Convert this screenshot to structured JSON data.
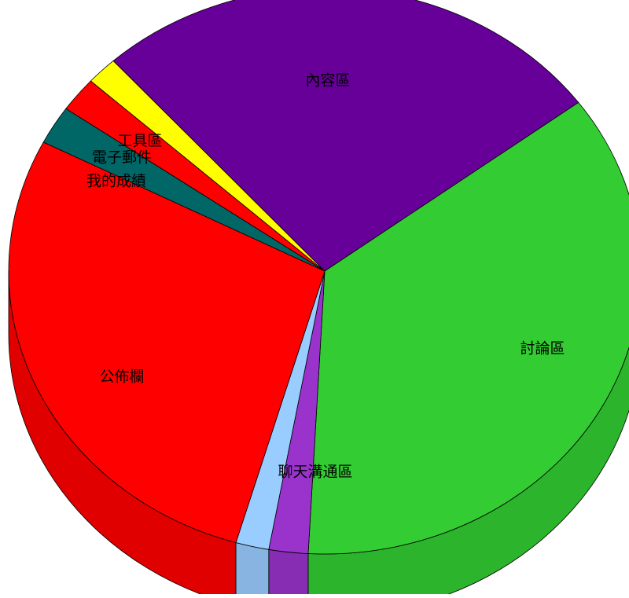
{
  "chart_data": {
    "type": "pie",
    "title": "",
    "style": "3d",
    "slices": [
      {
        "label": "內容區",
        "value": 26.5,
        "color": "#660099"
      },
      {
        "label": "討論區",
        "value": 36.0,
        "color": "#33CC33"
      },
      {
        "label": "",
        "value": 2.0,
        "color": "#9933CC"
      },
      {
        "label": "",
        "value": 1.7,
        "color": "#99CCFF"
      },
      {
        "label": "公佈欄",
        "value": 28.0,
        "color": "#FF0000"
      },
      {
        "label": "我的成績",
        "value": 2.2,
        "color": "#006666"
      },
      {
        "label": "電子郵件",
        "value": 2.0,
        "color": "#FF0000"
      },
      {
        "label": "工具區",
        "value": 1.6,
        "color": "#FFFF00"
      }
    ],
    "outside_labels": [
      {
        "text": "聊天溝通區"
      },
      {
        "text": "工具區"
      },
      {
        "text": "電子郵件"
      },
      {
        "text": "我的成績"
      }
    ]
  }
}
